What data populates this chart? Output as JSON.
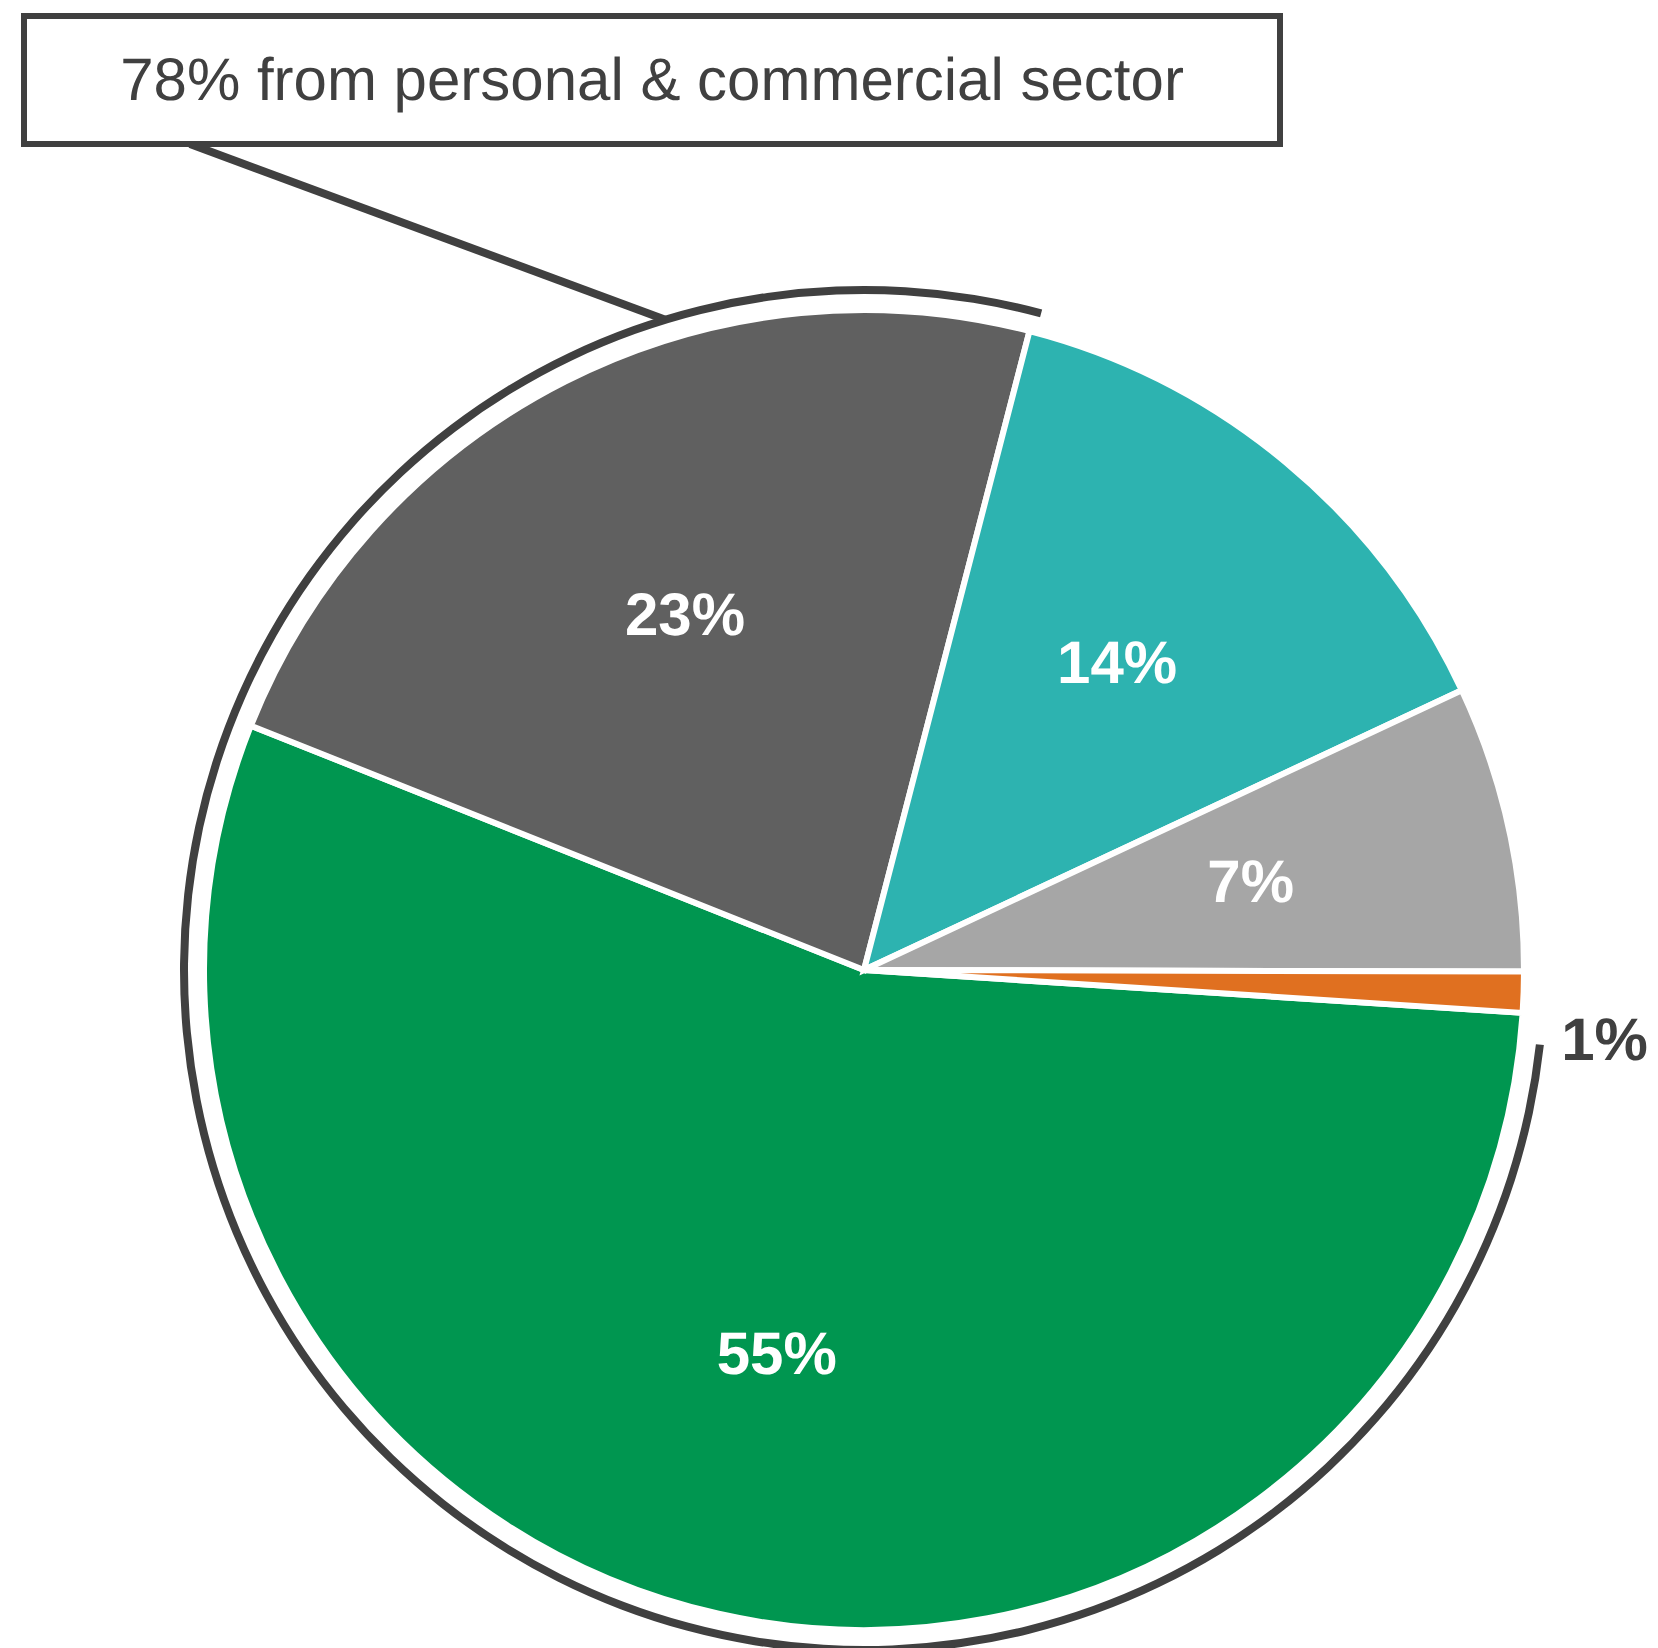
{
  "chart_data": {
    "type": "pie",
    "categories": [
      null,
      null,
      null,
      null,
      null
    ],
    "values": [
      55,
      23,
      14,
      7,
      1
    ],
    "colors": [
      "#009650",
      "#606060",
      "#2db3b0",
      "#a6a6a6",
      "#e07020"
    ],
    "value_labels": [
      "55%",
      "23%",
      "14%",
      "7%",
      "1%"
    ],
    "annotations": [
      "78% from personal & commercial sector"
    ]
  }
}
